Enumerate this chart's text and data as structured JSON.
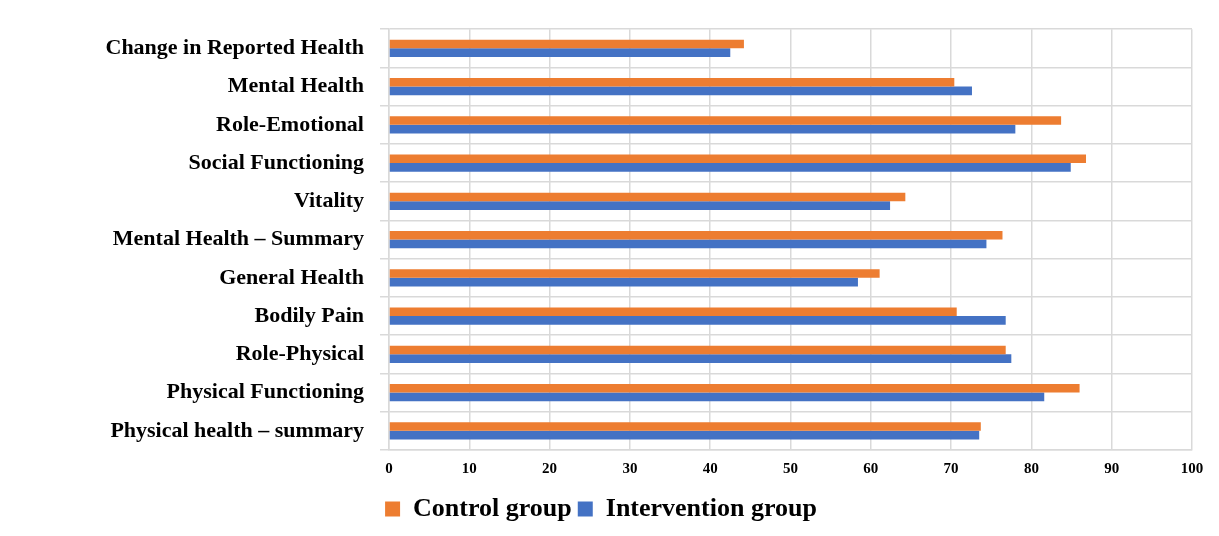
{
  "chart_data": {
    "type": "bar",
    "orientation": "horizontal",
    "categories": [
      "Change in Reported Health",
      "Mental Health",
      "Role-Emotional",
      "Social Functioning",
      "Vitality",
      "Mental Health – Summary",
      "General Health",
      "Bodily Pain",
      "Role-Physical",
      "Physical Functioning",
      "Physical health – summary"
    ],
    "series": [
      {
        "name": "Control group",
        "color": "#ed7d31",
        "values": [
          44.2,
          70.4,
          83.7,
          86.8,
          64.3,
          76.4,
          61.1,
          70.7,
          76.8,
          86.0,
          73.7
        ]
      },
      {
        "name": "Intervention group",
        "color": "#4472c4",
        "values": [
          42.5,
          72.6,
          78.0,
          84.9,
          62.4,
          74.4,
          58.4,
          76.8,
          77.5,
          81.6,
          73.5
        ]
      }
    ],
    "xlim": [
      0,
      100
    ],
    "xticks": [
      0,
      10,
      20,
      30,
      40,
      50,
      60,
      70,
      80,
      90,
      100
    ],
    "grid": true,
    "legend": "bottom"
  }
}
